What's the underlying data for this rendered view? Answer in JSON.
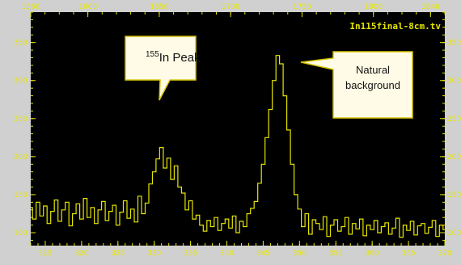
{
  "chart_data": {
    "type": "line",
    "file_label": "In115final-8cm.tv",
    "x_top": {
      "label": "",
      "lim": [
        1560,
        1850
      ],
      "ticks": [
        1560,
        1600,
        1650,
        1700,
        1750,
        1800,
        1840
      ]
    },
    "x_bottom": {
      "label": "",
      "lim": [
        313,
        370
      ],
      "ticks": [
        315,
        320,
        325,
        330,
        335,
        340,
        345,
        350,
        355,
        360,
        365,
        370
      ]
    },
    "y": {
      "label": "",
      "lim": [
        83,
        390
      ],
      "ticks": [
        100,
        150,
        200,
        250,
        300,
        350
      ],
      "ticks_right": [
        100,
        150,
        200,
        250,
        300,
        350
      ]
    },
    "series": [
      {
        "color": "#e6e600",
        "x": [
          313,
          313.5,
          314,
          314.5,
          315,
          315.5,
          316,
          316.5,
          317,
          317.5,
          318,
          318.5,
          319,
          319.5,
          320,
          320.5,
          321,
          321.5,
          322,
          322.5,
          323,
          323.5,
          324,
          324.5,
          325,
          325.5,
          326,
          326.5,
          327,
          327.5,
          328,
          328.5,
          329,
          329.5,
          330,
          330.5,
          331,
          331.5,
          332,
          332.5,
          333,
          333.5,
          334,
          334.5,
          335,
          335.5,
          336,
          336.5,
          337,
          337.5,
          338,
          338.5,
          339,
          339.5,
          340,
          340.5,
          341,
          341.5,
          342,
          342.5,
          343,
          343.5,
          344,
          344.5,
          345,
          345.5,
          346,
          346.5,
          347,
          347.5,
          348,
          348.5,
          349,
          349.5,
          350,
          350.5,
          351,
          351.5,
          352,
          352.5,
          353,
          353.5,
          354,
          354.5,
          355,
          355.5,
          356,
          356.5,
          357,
          357.5,
          358,
          358.5,
          359,
          359.5,
          360,
          360.5,
          361,
          361.5,
          362,
          362.5,
          363,
          363.5,
          364,
          364.5,
          365,
          365.5,
          366,
          366.5,
          367,
          367.5,
          368,
          368.5,
          369,
          369.5,
          370
        ],
        "y": [
          133,
          118,
          140,
          122,
          135,
          112,
          128,
          143,
          115,
          130,
          140,
          109,
          125,
          138,
          118,
          145,
          120,
          133,
          112,
          130,
          141,
          116,
          128,
          136,
          110,
          127,
          142,
          119,
          131,
          114,
          148,
          125,
          139,
          164,
          180,
          197,
          212,
          185,
          198,
          170,
          188,
          160,
          152,
          130,
          142,
          118,
          123,
          110,
          102,
          116,
          108,
          120,
          103,
          112,
          118,
          106,
          122,
          100,
          115,
          108,
          125,
          132,
          141,
          165,
          190,
          225,
          262,
          300,
          333,
          322,
          280,
          235,
          190,
          150,
          131,
          108,
          125,
          98,
          117,
          112,
          104,
          121,
          95,
          110,
          117,
          102,
          108,
          120,
          98,
          112,
          105,
          118,
          96,
          110,
          104,
          116,
          100,
          108,
          113,
          98,
          106,
          119,
          94,
          110,
          103,
          115,
          97,
          109,
          112,
          99,
          107,
          116,
          95,
          110,
          104
        ]
      }
    ],
    "annotations": [
      {
        "id": "in-peak",
        "sup": "155",
        "text": "In Peak",
        "x": 331,
        "y": 245
      },
      {
        "id": "natural-bg",
        "line1": "Natural",
        "line2": "background",
        "x": 347.5,
        "y": 318
      }
    ]
  },
  "colors": {
    "plot_bg": "#000000",
    "frame_bg": "#d0d0d0",
    "trace": "#e6e600",
    "callout_bg": "#fffbe6",
    "callout_border": "#d8c400"
  }
}
